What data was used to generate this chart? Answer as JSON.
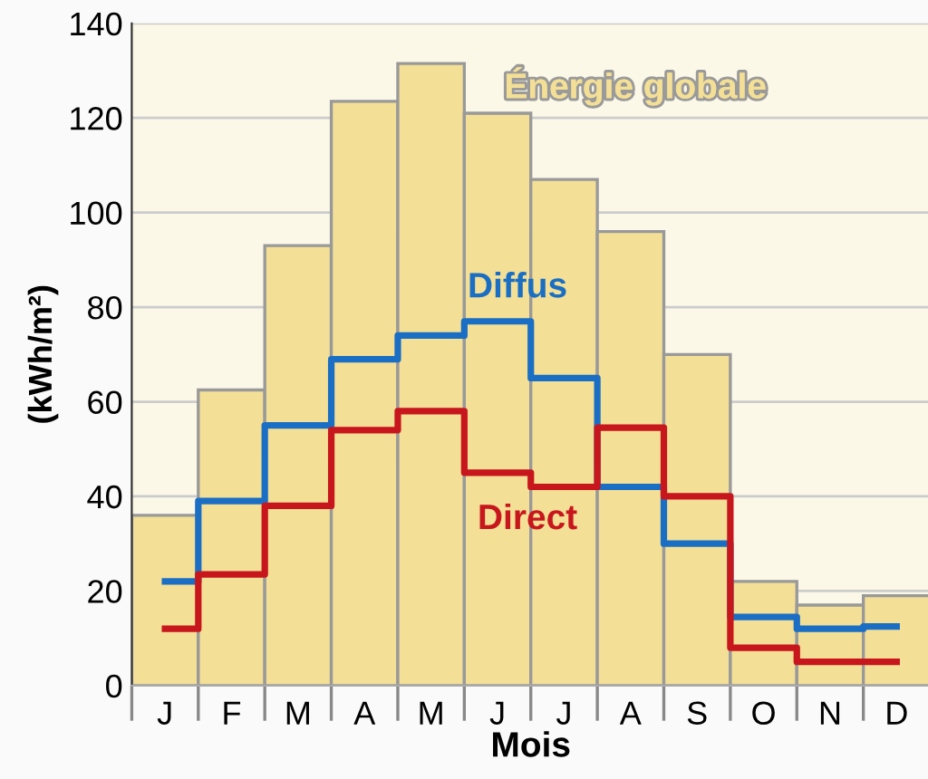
{
  "chart_data": {
    "type": "bar",
    "xlabel": "Mois",
    "ylabel": "(kWh/m²)",
    "categories": [
      "J",
      "F",
      "M",
      "A",
      "M",
      "J",
      "J",
      "A",
      "S",
      "O",
      "N",
      "D"
    ],
    "series": [
      {
        "name": "Énergie globale",
        "color": "#f3df96",
        "values": [
          36,
          62.5,
          93,
          123.5,
          131.5,
          121,
          107,
          96,
          70,
          22,
          17,
          19
        ]
      },
      {
        "name": "Diffus",
        "type": "step",
        "color": "#1a6fc4",
        "values": [
          22,
          39,
          55,
          69,
          74,
          77,
          65,
          42,
          30,
          14.5,
          12,
          12.5
        ]
      },
      {
        "name": "Direct",
        "type": "step",
        "color": "#c8161d",
        "values": [
          12,
          23.5,
          38,
          54,
          58,
          45,
          42,
          54.5,
          40,
          8,
          5,
          5
        ]
      }
    ],
    "ylim": [
      0,
      140
    ],
    "yticks": [
      0,
      20,
      40,
      60,
      80,
      100,
      120,
      140
    ],
    "grid": "y",
    "legend": false
  }
}
